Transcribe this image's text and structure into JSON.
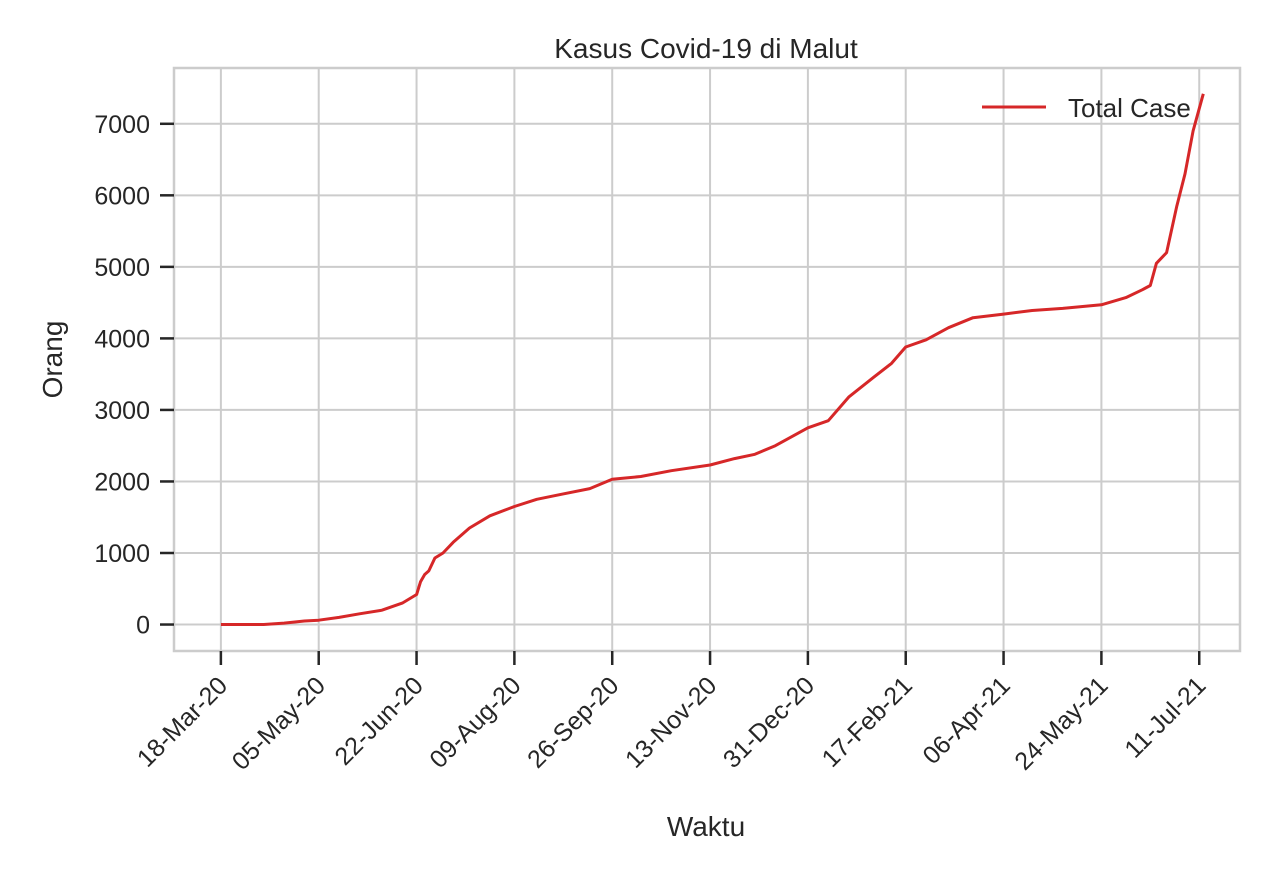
{
  "chart_data": {
    "type": "line",
    "title": "Kasus Covid-19 di Malut",
    "xlabel": "Waktu",
    "ylabel": "Orang",
    "x_tick_labels": [
      "18-Mar-20",
      "05-May-20",
      "22-Jun-20",
      "09-Aug-20",
      "26-Sep-20",
      "13-Nov-20",
      "31-Dec-20",
      "17-Feb-21",
      "06-Apr-21",
      "24-May-21",
      "11-Jul-21"
    ],
    "x_ticks": [
      "2020-03-18",
      "2020-05-05",
      "2020-06-22",
      "2020-08-09",
      "2020-09-26",
      "2020-11-13",
      "2020-12-31",
      "2021-02-17",
      "2021-04-06",
      "2021-05-24",
      "2021-07-11"
    ],
    "xlim": [
      "2020-02-24",
      "2021-07-31"
    ],
    "yticks": [
      0,
      1000,
      2000,
      3000,
      4000,
      5000,
      6000,
      7000
    ],
    "ylim": [
      -370,
      7780
    ],
    "grid": true,
    "legend_position": "upper right",
    "series": [
      {
        "name": "Total Case",
        "color": "#d62728",
        "x": [
          "2020-03-18",
          "2020-04-08",
          "2020-04-18",
          "2020-04-28",
          "2020-05-05",
          "2020-05-15",
          "2020-05-25",
          "2020-06-05",
          "2020-06-15",
          "2020-06-22",
          "2020-06-24",
          "2020-06-26",
          "2020-06-28",
          "2020-07-01",
          "2020-07-05",
          "2020-07-10",
          "2020-07-18",
          "2020-07-28",
          "2020-08-09",
          "2020-08-20",
          "2020-09-01",
          "2020-09-15",
          "2020-09-26",
          "2020-10-10",
          "2020-10-25",
          "2020-11-13",
          "2020-11-25",
          "2020-12-05",
          "2020-12-15",
          "2020-12-31",
          "2021-01-10",
          "2021-01-20",
          "2021-02-01",
          "2021-02-10",
          "2021-02-17",
          "2021-02-27",
          "2021-03-10",
          "2021-03-22",
          "2021-04-06",
          "2021-04-20",
          "2021-05-05",
          "2021-05-24",
          "2021-06-05",
          "2021-06-13",
          "2021-06-17",
          "2021-06-20",
          "2021-06-25",
          "2021-06-30",
          "2021-07-04",
          "2021-07-08",
          "2021-07-13"
        ],
        "values": [
          0,
          0,
          20,
          50,
          60,
          100,
          150,
          200,
          300,
          420,
          600,
          700,
          750,
          930,
          1000,
          1150,
          1350,
          1520,
          1650,
          1750,
          1820,
          1900,
          2030,
          2070,
          2150,
          2230,
          2320,
          2380,
          2500,
          2750,
          2850,
          3180,
          3450,
          3650,
          3880,
          3980,
          4150,
          4290,
          4340,
          4390,
          4420,
          4470,
          4570,
          4680,
          4740,
          5050,
          5200,
          5850,
          6300,
          6900,
          7420
        ]
      }
    ]
  }
}
